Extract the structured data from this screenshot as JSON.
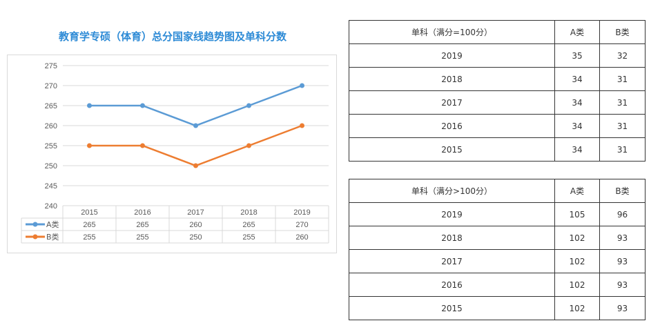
{
  "chart_title": "教育学专硕（体育）总分国家线趋势图及单科分数",
  "chart_data": {
    "type": "line",
    "categories": [
      "2015",
      "2016",
      "2017",
      "2018",
      "2019"
    ],
    "series": [
      {
        "name": "A类",
        "values": [
          265,
          265,
          260,
          265,
          270
        ],
        "color": "#5b9bd5"
      },
      {
        "name": "B类",
        "values": [
          255,
          255,
          250,
          255,
          260
        ],
        "color": "#ed7d31"
      }
    ],
    "ylim": [
      240,
      275
    ],
    "yticks": [
      240,
      245,
      250,
      255,
      260,
      265,
      270,
      275
    ],
    "grid": true,
    "data_table": true
  },
  "table1": {
    "headers": [
      "单科（满分=100分）",
      "A类",
      "B类"
    ],
    "rows": [
      [
        "2019",
        "35",
        "32"
      ],
      [
        "2018",
        "34",
        "31"
      ],
      [
        "2017",
        "34",
        "31"
      ],
      [
        "2016",
        "34",
        "31"
      ],
      [
        "2015",
        "34",
        "31"
      ]
    ]
  },
  "table2": {
    "headers": [
      "单科（满分>100分）",
      "A类",
      "B类"
    ],
    "rows": [
      [
        "2019",
        "105",
        "96"
      ],
      [
        "2018",
        "102",
        "93"
      ],
      [
        "2017",
        "102",
        "93"
      ],
      [
        "2016",
        "102",
        "93"
      ],
      [
        "2015",
        "102",
        "93"
      ]
    ]
  }
}
